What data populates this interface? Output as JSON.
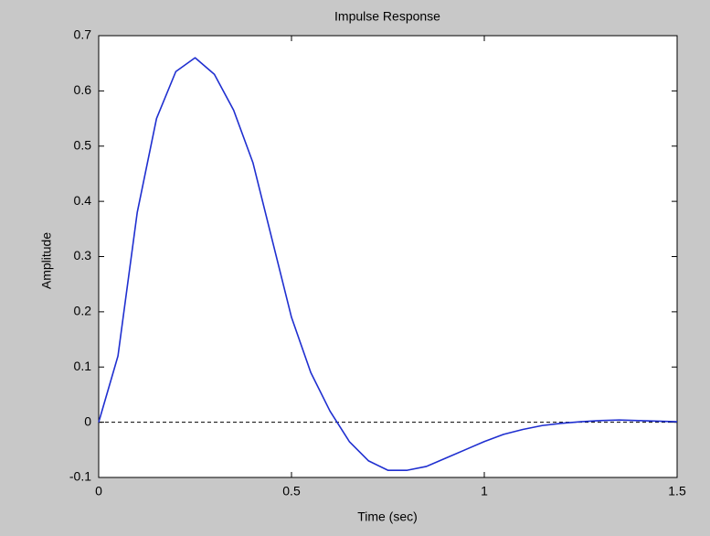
{
  "chart_data": {
    "type": "line",
    "title": "Impulse Response",
    "x_label": "Time (sec)",
    "y_label": "Amplitude",
    "x": [
      0,
      0.05,
      0.1,
      0.15,
      0.2,
      0.25,
      0.3,
      0.35,
      0.4,
      0.45,
      0.5,
      0.55,
      0.6,
      0.65,
      0.7,
      0.75,
      0.8,
      0.85,
      0.9,
      0.95,
      1.0,
      1.05,
      1.1,
      1.15,
      1.2,
      1.25,
      1.3,
      1.35,
      1.4,
      1.45,
      1.5
    ],
    "values": [
      0,
      0.12,
      0.38,
      0.55,
      0.635,
      0.66,
      0.63,
      0.565,
      0.47,
      0.33,
      0.19,
      0.09,
      0.02,
      -0.035,
      -0.07,
      -0.087,
      -0.087,
      -0.08,
      -0.065,
      -0.05,
      -0.035,
      -0.022,
      -0.013,
      -0.006,
      -0.002,
      0.001,
      0.003,
      0.004,
      0.003,
      0.002,
      0.001
    ],
    "color": "#1f2fd0",
    "hline": 0,
    "xlim": [
      0,
      1.5
    ],
    "xticks": [
      0,
      0.5,
      1,
      1.5
    ],
    "ylim": [
      -0.1,
      0.7
    ],
    "yticks": [
      -0.1,
      0,
      0.1,
      0.2,
      0.3,
      0.4,
      0.5,
      0.6,
      0.7
    ],
    "grid": false
  }
}
